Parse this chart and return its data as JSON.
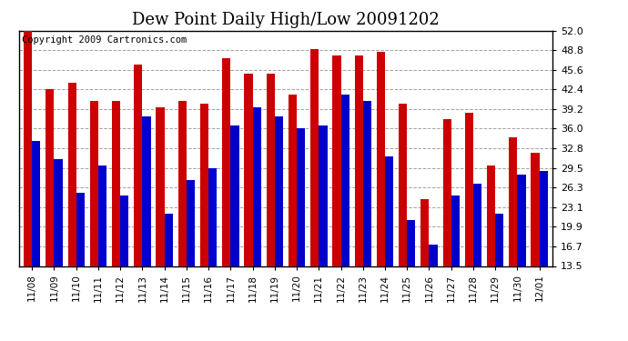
{
  "title": "Dew Point Daily High/Low 20091202",
  "copyright": "Copyright 2009 Cartronics.com",
  "dates": [
    "11/08",
    "11/09",
    "11/10",
    "11/11",
    "11/12",
    "11/13",
    "11/14",
    "11/15",
    "11/16",
    "11/17",
    "11/18",
    "11/19",
    "11/20",
    "11/21",
    "11/22",
    "11/23",
    "11/24",
    "11/25",
    "11/26",
    "11/27",
    "11/28",
    "11/29",
    "11/30",
    "12/01"
  ],
  "highs": [
    52.0,
    42.4,
    43.5,
    40.5,
    40.5,
    46.5,
    39.5,
    40.5,
    40.0,
    47.5,
    45.0,
    45.0,
    41.5,
    49.0,
    48.0,
    48.0,
    48.5,
    40.0,
    24.5,
    37.5,
    38.5,
    30.0,
    34.5,
    32.0
  ],
  "lows": [
    34.0,
    31.0,
    25.5,
    30.0,
    25.0,
    38.0,
    22.0,
    27.5,
    29.5,
    36.5,
    39.5,
    38.0,
    36.0,
    36.5,
    41.5,
    40.5,
    31.5,
    21.0,
    17.0,
    25.0,
    27.0,
    22.0,
    28.5,
    29.0
  ],
  "high_color": "#cc0000",
  "low_color": "#0000cc",
  "background_color": "#ffffff",
  "plot_bg_color": "#ffffff",
  "grid_color": "#999999",
  "ymin": 13.5,
  "ymax": 52.0,
  "yticks": [
    13.5,
    16.7,
    19.9,
    23.1,
    26.3,
    29.5,
    32.8,
    36.0,
    39.2,
    42.4,
    45.6,
    48.8,
    52.0
  ],
  "title_fontsize": 13,
  "copyright_fontsize": 7.5,
  "bar_width": 0.38
}
